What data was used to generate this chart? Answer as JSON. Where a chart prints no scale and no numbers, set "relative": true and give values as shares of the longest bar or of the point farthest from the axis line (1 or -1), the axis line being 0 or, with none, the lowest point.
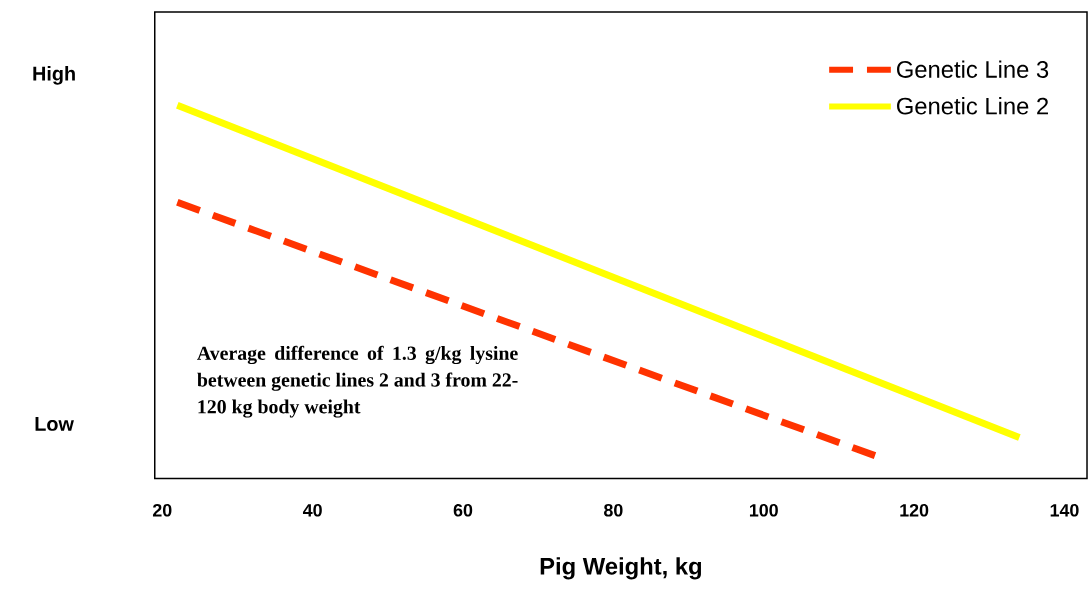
{
  "chart_data": {
    "type": "line",
    "xlabel": "Pig Weight, kg",
    "xlim": [
      19,
      143
    ],
    "xticks": [
      20,
      40,
      60,
      80,
      100,
      120,
      140
    ],
    "relative": true,
    "series": [
      {
        "name": "Genetic Line 3",
        "color": "#ff3300",
        "line_style": "dashed",
        "x": [
          22,
          115
        ],
        "values": [
          0.74,
          0.06
        ]
      },
      {
        "name": "Genetic Line 2",
        "color": "#ffff00",
        "line_style": "solid",
        "x": [
          22,
          134
        ],
        "values": [
          1,
          0.11
        ]
      }
    ],
    "legend": "top right",
    "annotations": [
      "High",
      "Low",
      "Average difference of 1.3 g/kg lysine between genetic lines 2 and 3 from 22-120 kg body weight"
    ]
  }
}
